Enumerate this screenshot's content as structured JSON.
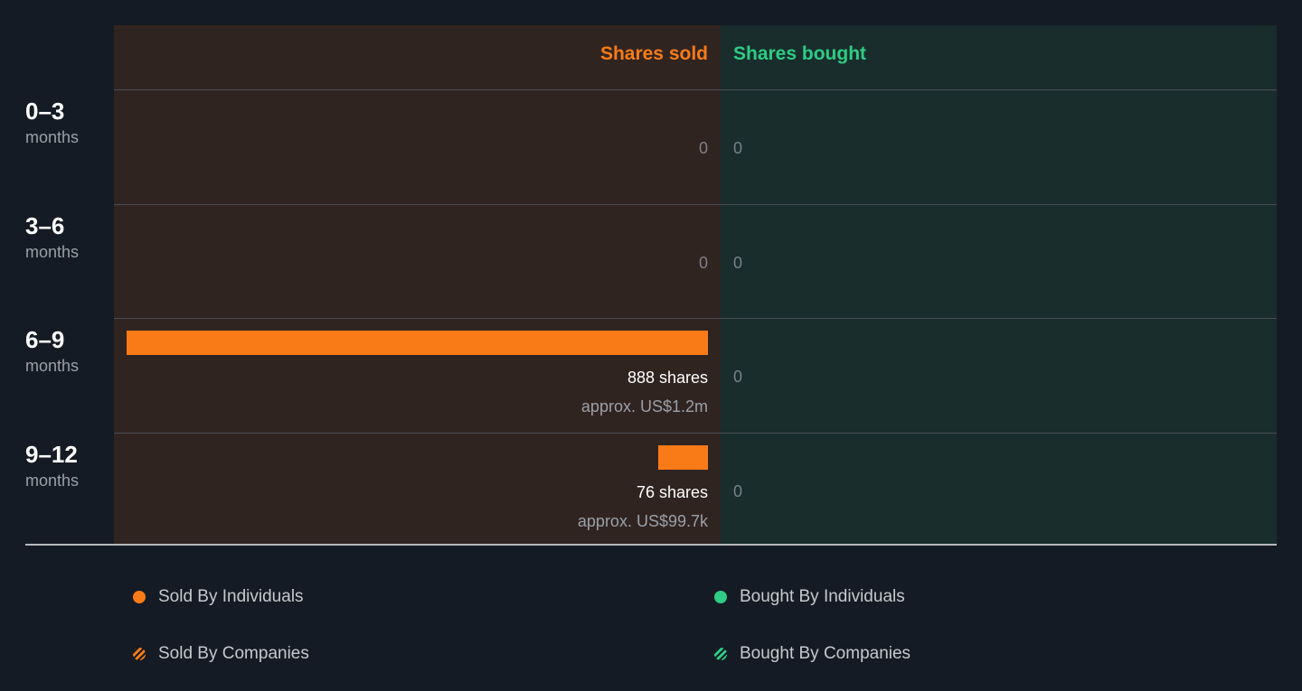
{
  "chart_data": {
    "type": "bar",
    "columns": {
      "sold": "Shares sold",
      "bought": "Shares bought"
    },
    "categories": [
      {
        "range": "0–3",
        "unit": "months"
      },
      {
        "range": "3–6",
        "unit": "months"
      },
      {
        "range": "6–9",
        "unit": "months"
      },
      {
        "range": "9–12",
        "unit": "months"
      }
    ],
    "series": [
      {
        "name": "Shares sold",
        "values": [
          0,
          0,
          888,
          76
        ],
        "labels": [
          "0",
          "0",
          "888 shares",
          "76 shares"
        ],
        "approx": [
          "",
          "",
          "approx. US$1.2m",
          "approx. US$99.7k"
        ]
      },
      {
        "name": "Shares bought",
        "values": [
          0,
          0,
          0,
          0
        ],
        "labels": [
          "0",
          "0",
          "0",
          "0"
        ]
      }
    ],
    "legend": [
      {
        "label": "Sold By Individuals",
        "style": "solid",
        "color": "#f97b17"
      },
      {
        "label": "Bought By Individuals",
        "style": "solid",
        "color": "#2ecc84"
      },
      {
        "label": "Sold By Companies",
        "style": "hatched",
        "color": "#f97b17"
      },
      {
        "label": "Bought By Companies",
        "style": "hatched",
        "color": "#2ecc84"
      }
    ],
    "colors": {
      "sold": "#f97b17",
      "bought": "#2ecc84"
    }
  }
}
